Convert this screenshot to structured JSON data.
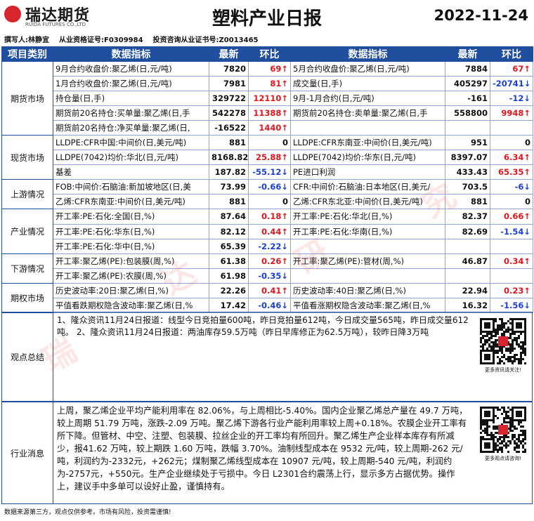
{
  "header": {
    "logo": "瑞达期货",
    "logo_en": "RUIDA FUTURES CO.,LTD",
    "title": "塑料产业日报",
    "date": "2022-11-24"
  },
  "author": [
    "撰写人:林静宜",
    "从业资格证号:F0309984",
    "投资咨询从业证书号:Z0013465"
  ],
  "table": {
    "columns": [
      "项目类别",
      "数据指标",
      "最新",
      "环比",
      "数据指标",
      "最新",
      "环比"
    ],
    "sections": [
      {
        "category": "期货市场",
        "rows": [
          [
            "9月合约收盘价:聚乙烯(日,元/吨)",
            7820,
            "69↑",
            "5月合约收盘价:聚乙烯(日,元/吨)",
            7884,
            "67↑"
          ],
          [
            "1月合约收盘价:聚乙烯(日,元/吨)",
            7981,
            "81↑",
            "成交量(日,手)",
            405297,
            "-20741↓"
          ],
          [
            "持仓量(日,手)",
            329722,
            "12110↑",
            "9月-1月合约(日,元/吨)",
            -161,
            "-12↓"
          ],
          [
            "期货前20名持仓:买单量:聚乙烯(日,手",
            542278,
            "11388↑",
            "期货前20名持仓:卖单量:聚乙烯(日,手",
            558800,
            "9948↑"
          ],
          [
            "期货前20名持仓:净买单量:聚乙烯(日,",
            -16522,
            "1440↑"
          ]
        ]
      },
      {
        "category": "现货市场",
        "rows": [
          [
            "LLDPE:CFR中国:中间价(日,美元/吨)",
            881,
            0,
            "LLDPE:CFR东南亚:中间价(日,美元/吨)",
            951,
            0
          ],
          [
            "LLDPE(7042)均价:华北(日,元/吨)",
            8168.82,
            "25.88↑",
            "LLDPE(7042)均价:华东(日,元/吨)",
            8397.07,
            "6.34↑"
          ],
          [
            "基差",
            187.82,
            "-55.12↓",
            "PE进口利润",
            433.43,
            "65.35↑"
          ]
        ]
      },
      {
        "category": "上游情况",
        "rows": [
          [
            "FOB:中间价:石脑油:新加坡地区(日,美",
            73.99,
            "-0.66↓",
            "CFR:中间价:石脑油:日本地区(日,美元/",
            703.5,
            "-6↓"
          ],
          [
            "乙烯:CFR东南亚:中间价(日,美元/吨)",
            881,
            0,
            "乙烯:CFR东北亚:中间价(日,美元/吨)",
            881,
            0
          ]
        ]
      },
      {
        "category": "产业情况",
        "rows": [
          [
            "开工率:PE:石化:全国(日,%)",
            87.64,
            "0.18↑",
            "开工率:PE:石化:华北(日,%)",
            82.37,
            "0.66↑"
          ],
          [
            "开工率:PE:石化:华东(日,%)",
            82.12,
            "0.44↑",
            "开工率:PE:石化:华南(日,%)",
            82.69,
            "-1.54↓"
          ],
          [
            "开工率:PE:石化:华中(日,%)",
            65.39,
            "-2.22↓"
          ]
        ]
      },
      {
        "category": "下游情况",
        "rows": [
          [
            "开工率:聚乙烯(PE):包装膜(周,%)",
            61.38,
            "0.26↑",
            "开工率:聚乙烯(PE):管材(周,%)",
            46.87,
            "0.34↑"
          ],
          [
            "开工率:聚乙烯(PE):农膜(周,%)",
            61.98,
            "-0.35↓"
          ]
        ]
      },
      {
        "category": "期权市场",
        "rows": [
          [
            "历史波动率:20日:聚乙烯(日,%)",
            22.26,
            "0.41↑",
            "历史波动率:40日:聚乙烯(日,%)",
            22.94,
            "0.23↑"
          ],
          [
            "平值看跌期权隐含波动率:聚乙烯(日,%",
            17.42,
            "-0.46↓",
            "平值看涨期权隐含波动率:聚乙烯(日,%",
            16.32,
            "-1.56↓"
          ]
        ]
      }
    ]
  },
  "summary": {
    "label": "观点总结",
    "text": "1、隆众资讯11月24日报道：线型今日竞拍量600吨，昨日竞拍量612吨，今日成交量565吨，昨日成交量612吨。 2、隆众资讯11月24日报道：两油库存59.5万吨（昨日早库修正为62.5万吨），较昨日降3万吨",
    "qr_caption": "更多资讯请关注!"
  },
  "industry": {
    "label": "行业消息",
    "text": "上周，聚乙烯企业平均产能利用率在 82.06%，与上周相比-5.40%。国内企业聚乙烯总产量在 49.7 万吨，较上周期 51.79 万吨，涨跌-2.09 万吨。聚乙烯下游各行业产能利用率较上周+0.18%。农膜企业开工率有所下降。但管材、中空、注塑、包装膜、拉丝企业的开工率均有所回升。聚乙烯生产企业样本库存有所减少，报41.62 万吨，较上期跌 1.60 万吨，跌幅 3.70%。油制线型成本在 9532 元/吨，较上周期-262 元/吨，利润约为-2332元，+262元；煤制聚乙烯线型成本在 10907 元/吨，较上周期-540 元/吨，利润约为-2757元，+550元。生产企业继续处于亏损中。今日 L2301合约震荡上行，显示多方占据优势。操作上，建议手中多单可以设好止盈，谨慎持有。",
    "qr_caption": "更多观点请咨询!"
  },
  "footer": "数据来源第三方，观点仅供参考。市场有风险，投资需谨慎!",
  "watermark": [
    "瑞",
    "达",
    "研",
    "究"
  ]
}
